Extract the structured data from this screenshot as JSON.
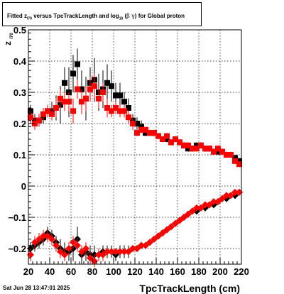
{
  "title": {
    "prefix": "Fitted",
    "z_symbol": "z",
    "z_sub": "I70",
    "middle": "versus TpcTrackLength and log",
    "log_sub": "10",
    "paren_open": "(",
    "beta": "β",
    "gamma": "γ",
    "paren_close": ")",
    "suffix": "for Global proton"
  },
  "datestamp": "Sat Jun 28 13:47:01 2025",
  "colors": {
    "series_a": "#000000",
    "series_b": "#ff0000",
    "grid": "#000000"
  },
  "chart_data": {
    "type": "scatter",
    "xlabel": "TpcTrackLength (cm)",
    "ylabel_main": "z",
    "ylabel_sub": "I70",
    "xlim": [
      20,
      220
    ],
    "ylim": [
      -0.25,
      0.5
    ],
    "xticks": [
      20,
      40,
      60,
      80,
      100,
      120,
      140,
      160,
      180,
      200,
      220
    ],
    "xtick_labels": [
      "20",
      "40",
      "60",
      "80",
      "100",
      "120",
      "140",
      "160",
      "180",
      "200",
      "220"
    ],
    "yticks": [
      -0.2,
      -0.1,
      0,
      0.1,
      0.2,
      0.3,
      0.4,
      0.5
    ],
    "ytick_labels": [
      "−0.2",
      "−0.1",
      "0",
      "0.1",
      "0.2",
      "0.3",
      "0.4",
      "0.5"
    ],
    "grid": true,
    "series": [
      {
        "color": "#000000",
        "upper": {
          "x": [
            22,
            26,
            30,
            34,
            38,
            42,
            46,
            50,
            54,
            58,
            62,
            66,
            70,
            74,
            78,
            82,
            86,
            90,
            94,
            98,
            102,
            106,
            110,
            114,
            118,
            122,
            126,
            130,
            134,
            138,
            142,
            146,
            150,
            154,
            158,
            162,
            166,
            170,
            174,
            178,
            182,
            186,
            190,
            194,
            198,
            202,
            206,
            210,
            214,
            218
          ],
          "y": [
            0.24,
            0.21,
            0.21,
            0.22,
            0.24,
            0.24,
            0.25,
            0.26,
            0.33,
            0.3,
            0.36,
            0.39,
            0.31,
            0.28,
            0.33,
            0.34,
            0.3,
            0.31,
            0.33,
            0.32,
            0.29,
            0.29,
            0.27,
            0.25,
            0.21,
            0.2,
            0.19,
            0.17,
            0.17,
            0.17,
            0.16,
            0.15,
            0.15,
            0.14,
            0.15,
            0.14,
            0.13,
            0.12,
            0.12,
            0.13,
            0.13,
            0.12,
            0.12,
            0.11,
            0.11,
            0.11,
            0.1,
            0.1,
            0.09,
            0.08
          ],
          "err": [
            0.02,
            0.02,
            0.02,
            0.02,
            0.02,
            0.03,
            0.04,
            0.06,
            0.05,
            0.08,
            0.06,
            0.05,
            0.06,
            0.07,
            0.05,
            0.07,
            0.06,
            0.06,
            0.06,
            0.05,
            0.04,
            0.04,
            0.03,
            0.03,
            0.02,
            0.02,
            0.02,
            0.01,
            0.01,
            0.01,
            0.01,
            0.01,
            0.01,
            0.01,
            0.01,
            0.01,
            0.01,
            0.01,
            0.01,
            0.01,
            0.01,
            0.01,
            0.01,
            0.01,
            0.01,
            0.01,
            0.01,
            0.01,
            0.01,
            0.01
          ]
        },
        "lower": {
          "x": [
            22,
            26,
            30,
            34,
            38,
            42,
            46,
            50,
            54,
            58,
            62,
            66,
            70,
            74,
            78,
            82,
            86,
            90,
            94,
            98,
            102,
            106,
            110,
            114,
            118,
            122,
            126,
            130,
            134,
            138,
            142,
            146,
            150,
            154,
            158,
            162,
            166,
            170,
            174,
            178,
            182,
            186,
            190,
            194,
            198,
            202,
            206,
            210,
            214,
            218
          ],
          "y": [
            -0.2,
            -0.19,
            -0.18,
            -0.17,
            -0.15,
            -0.16,
            -0.18,
            -0.2,
            -0.21,
            -0.21,
            -0.2,
            -0.17,
            -0.22,
            -0.21,
            -0.22,
            -0.22,
            -0.22,
            -0.21,
            -0.21,
            -0.21,
            -0.22,
            -0.21,
            -0.21,
            -0.21,
            -0.2,
            -0.2,
            -0.19,
            -0.19,
            -0.18,
            -0.17,
            -0.16,
            -0.15,
            -0.14,
            -0.13,
            -0.12,
            -0.11,
            -0.1,
            -0.09,
            -0.08,
            -0.08,
            -0.07,
            -0.07,
            -0.06,
            -0.06,
            -0.05,
            -0.04,
            -0.04,
            -0.03,
            -0.03,
            -0.02
          ],
          "err": [
            0.02,
            0.02,
            0.02,
            0.02,
            0.02,
            0.02,
            0.02,
            0.03,
            0.03,
            0.03,
            0.04,
            0.04,
            0.03,
            0.03,
            0.03,
            0.03,
            0.02,
            0.02,
            0.02,
            0.02,
            0.02,
            0.02,
            0.02,
            0.02,
            0.01,
            0.01,
            0.01,
            0.01,
            0.01,
            0.01,
            0.01,
            0.01,
            0.01,
            0.01,
            0.01,
            0.01,
            0.01,
            0.01,
            0.01,
            0.01,
            0.01,
            0.01,
            0.01,
            0.01,
            0.01,
            0.01,
            0.01,
            0.01,
            0.01,
            0.01
          ]
        }
      },
      {
        "color": "#ff0000",
        "upper": {
          "x": [
            22,
            26,
            30,
            34,
            38,
            42,
            46,
            50,
            54,
            58,
            62,
            66,
            70,
            74,
            78,
            82,
            86,
            90,
            94,
            98,
            102,
            106,
            110,
            114,
            118,
            122,
            126,
            130,
            134,
            138,
            142,
            146,
            150,
            154,
            158,
            162,
            166,
            170,
            174,
            178,
            182,
            186,
            190,
            194,
            198,
            202,
            206,
            210,
            214,
            218
          ],
          "y": [
            0.22,
            0.2,
            0.21,
            0.23,
            0.24,
            0.23,
            0.25,
            0.28,
            0.27,
            0.27,
            0.24,
            0.31,
            0.27,
            0.28,
            0.31,
            0.32,
            0.28,
            0.3,
            0.25,
            0.24,
            0.25,
            0.24,
            0.24,
            0.22,
            0.2,
            0.17,
            0.18,
            0.18,
            0.17,
            0.17,
            0.16,
            0.15,
            0.16,
            0.14,
            0.15,
            0.14,
            0.13,
            0.13,
            0.12,
            0.12,
            0.13,
            0.12,
            0.12,
            0.11,
            0.12,
            0.11,
            0.1,
            0.1,
            0.08,
            0.07
          ],
          "err": [
            0.02,
            0.02,
            0.02,
            0.02,
            0.02,
            0.02,
            0.03,
            0.03,
            0.03,
            0.03,
            0.04,
            0.03,
            0.04,
            0.04,
            0.04,
            0.04,
            0.03,
            0.03,
            0.03,
            0.02,
            0.02,
            0.02,
            0.02,
            0.02,
            0.02,
            0.01,
            0.01,
            0.01,
            0.01,
            0.01,
            0.01,
            0.01,
            0.01,
            0.01,
            0.01,
            0.01,
            0.01,
            0.01,
            0.01,
            0.01,
            0.01,
            0.01,
            0.01,
            0.01,
            0.01,
            0.01,
            0.01,
            0.01,
            0.01,
            0.01
          ]
        },
        "lower": {
          "x": [
            22,
            26,
            30,
            34,
            38,
            42,
            46,
            50,
            54,
            58,
            62,
            66,
            70,
            74,
            78,
            82,
            86,
            90,
            94,
            98,
            102,
            106,
            110,
            114,
            118,
            122,
            126,
            130,
            134,
            138,
            142,
            146,
            150,
            154,
            158,
            162,
            166,
            170,
            174,
            178,
            182,
            186,
            190,
            194,
            198,
            202,
            206,
            210,
            214,
            218
          ],
          "y": [
            -0.22,
            -0.18,
            -0.17,
            -0.16,
            -0.16,
            -0.17,
            -0.19,
            -0.21,
            -0.22,
            -0.2,
            -0.18,
            -0.19,
            -0.21,
            -0.2,
            -0.23,
            -0.24,
            -0.22,
            -0.22,
            -0.21,
            -0.21,
            -0.21,
            -0.21,
            -0.21,
            -0.21,
            -0.2,
            -0.2,
            -0.19,
            -0.19,
            -0.18,
            -0.17,
            -0.16,
            -0.15,
            -0.14,
            -0.13,
            -0.12,
            -0.11,
            -0.1,
            -0.09,
            -0.08,
            -0.07,
            -0.07,
            -0.06,
            -0.06,
            -0.05,
            -0.05,
            -0.04,
            -0.03,
            -0.03,
            -0.02,
            -0.02
          ],
          "err": [
            0.02,
            0.02,
            0.02,
            0.02,
            0.02,
            0.02,
            0.02,
            0.02,
            0.02,
            0.02,
            0.02,
            0.02,
            0.02,
            0.02,
            0.02,
            0.02,
            0.02,
            0.02,
            0.01,
            0.01,
            0.01,
            0.01,
            0.01,
            0.01,
            0.01,
            0.01,
            0.01,
            0.01,
            0.01,
            0.01,
            0.01,
            0.01,
            0.01,
            0.01,
            0.01,
            0.01,
            0.01,
            0.01,
            0.01,
            0.01,
            0.01,
            0.01,
            0.01,
            0.01,
            0.01,
            0.01,
            0.01,
            0.01,
            0.01,
            0.01
          ]
        }
      }
    ]
  }
}
